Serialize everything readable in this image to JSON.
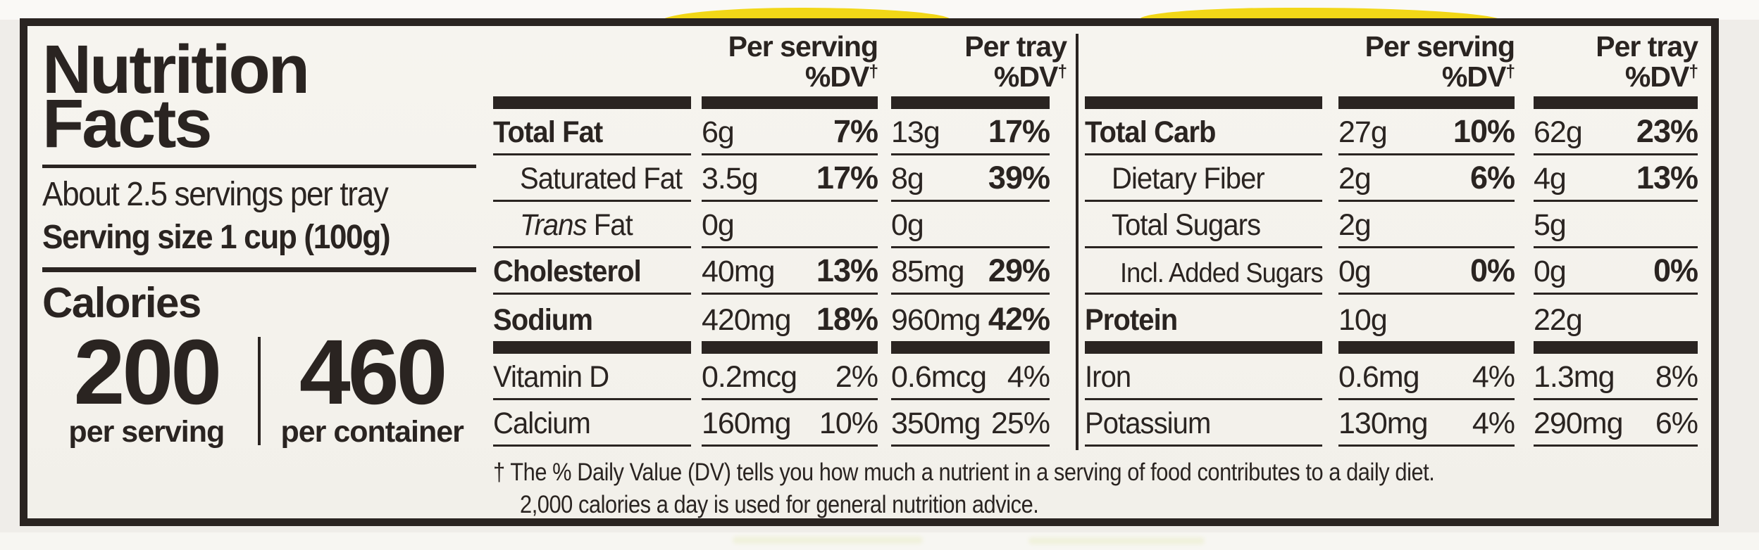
{
  "panel": {
    "title_line1": "Nutrition",
    "title_line2": "Facts",
    "servings_per_tray": "About 2.5 servings per tray",
    "serving_size": "Serving size 1 cup (100g)",
    "calories": {
      "heading": "Calories",
      "per_serving": {
        "value": "200",
        "label": "per serving"
      },
      "per_container": {
        "value": "460",
        "label": "per container"
      }
    }
  },
  "headers": {
    "per_serving": "Per serving",
    "per_tray": "Per tray",
    "dv_label": "%DV",
    "dagger": "†"
  },
  "tables": {
    "fat_panel": {
      "macro": [
        {
          "name": "Total Fat",
          "bold": true,
          "dv_bold": true,
          "serving_amount": "6g",
          "serving_dv": "7%",
          "tray_amount": "13g",
          "tray_dv": "17%"
        },
        {
          "name": "Saturated Fat",
          "indent": 1,
          "dv_bold": true,
          "serving_amount": "3.5g",
          "serving_dv": "17%",
          "tray_amount": "8g",
          "tray_dv": "39%"
        },
        {
          "italic_prefix": "Trans",
          "name": "Fat",
          "indent": 1,
          "dv_bold": true,
          "serving_amount": "0g",
          "serving_dv": "",
          "tray_amount": "0g",
          "tray_dv": ""
        },
        {
          "name": "Cholesterol",
          "bold": true,
          "dv_bold": true,
          "serving_amount": "40mg",
          "serving_dv": "13%",
          "tray_amount": "85mg",
          "tray_dv": "29%"
        },
        {
          "name": "Sodium",
          "bold": true,
          "dv_bold": true,
          "serving_amount": "420mg",
          "serving_dv": "18%",
          "tray_amount": "960mg",
          "tray_dv": "42%"
        }
      ],
      "micro": [
        {
          "name": "Vitamin D",
          "serving_amount": "0.2mcg",
          "serving_dv": "2%",
          "tray_amount": "0.6mcg",
          "tray_dv": "4%"
        },
        {
          "name": "Calcium",
          "serving_amount": "160mg",
          "serving_dv": "10%",
          "tray_amount": "350mg",
          "tray_dv": "25%"
        }
      ]
    },
    "carb_panel": {
      "macro": [
        {
          "name": "Total Carb",
          "bold": true,
          "dv_bold": true,
          "serving_amount": "27g",
          "serving_dv": "10%",
          "tray_amount": "62g",
          "tray_dv": "23%"
        },
        {
          "name": "Dietary Fiber",
          "indent": 1,
          "dv_bold": true,
          "serving_amount": "2g",
          "serving_dv": "6%",
          "tray_amount": "4g",
          "tray_dv": "13%"
        },
        {
          "name": "Total Sugars",
          "indent": 1,
          "dv_bold": true,
          "serving_amount": "2g",
          "serving_dv": "",
          "tray_amount": "5g",
          "tray_dv": ""
        },
        {
          "name": "Incl. Added Sugars",
          "indent": 2,
          "dv_bold": true,
          "serving_amount": "0g",
          "serving_dv": "0%",
          "tray_amount": "0g",
          "tray_dv": "0%"
        },
        {
          "name": "Protein",
          "bold": true,
          "dv_bold": true,
          "serving_amount": "10g",
          "serving_dv": "",
          "tray_amount": "22g",
          "tray_dv": ""
        }
      ],
      "micro": [
        {
          "name": "Iron",
          "serving_amount": "0.6mg",
          "serving_dv": "4%",
          "tray_amount": "1.3mg",
          "tray_dv": "8%"
        },
        {
          "name": "Potassium",
          "serving_amount": "130mg",
          "serving_dv": "4%",
          "tray_amount": "290mg",
          "tray_dv": "6%"
        }
      ]
    }
  },
  "footnote": {
    "dagger": "†",
    "line1": "The % Daily Value (DV) tells you how much a nutrient in a serving of food contributes to a daily diet.",
    "line2": "2,000 calories a day is used for general nutrition advice."
  },
  "colors": {
    "ink": "#2a2421",
    "label_background": "#f5f3ee",
    "packaging_yellow": "#f2d717"
  }
}
